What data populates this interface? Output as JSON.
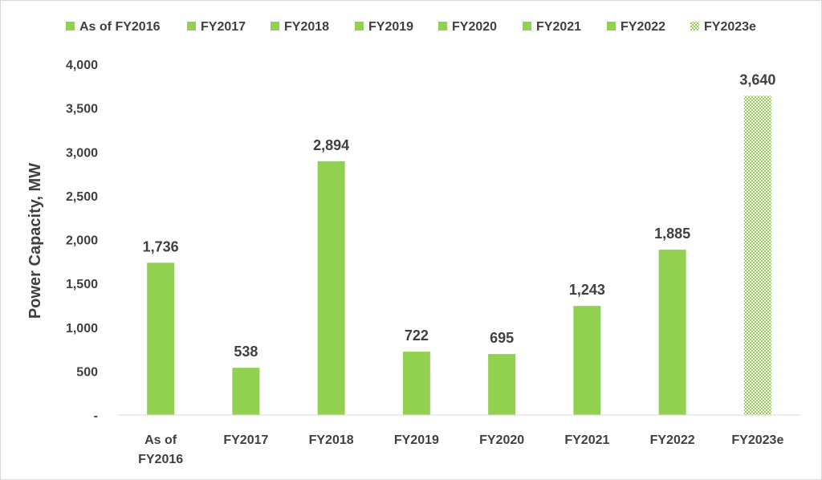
{
  "chart_data": {
    "type": "bar",
    "categories": [
      "As of FY2016",
      "FY2017",
      "FY2018",
      "FY2019",
      "FY2020",
      "FY2021",
      "FY2022",
      "FY2023e"
    ],
    "category_lines": [
      [
        "As of",
        "FY2016"
      ],
      [
        "FY2017"
      ],
      [
        "FY2018"
      ],
      [
        "FY2019"
      ],
      [
        "FY2020"
      ],
      [
        "FY2021"
      ],
      [
        "FY2022"
      ],
      [
        "FY2023e"
      ]
    ],
    "values": [
      1736,
      538,
      2894,
      722,
      695,
      1243,
      1885,
      3640
    ],
    "value_labels": [
      "1,736",
      "538",
      "2,894",
      "722",
      "695",
      "1,243",
      "1,885",
      "3,640"
    ],
    "estimated": [
      false,
      false,
      false,
      false,
      false,
      false,
      false,
      true
    ],
    "legend_entries": [
      "As of FY2016",
      "FY2017",
      "FY2018",
      "FY2019",
      "FY2020",
      "FY2021",
      "FY2022",
      "FY2023e"
    ],
    "legend_position": "top",
    "title": "",
    "xlabel": "",
    "ylabel": "Power Capacity, MW",
    "ylim": [
      0,
      4000
    ],
    "yticks": [
      0,
      500,
      1000,
      1500,
      2000,
      2500,
      3000,
      3500,
      4000
    ],
    "ytick_labels": [
      "-",
      "500",
      "1,000",
      "1,500",
      "2,000",
      "2,500",
      "3,000",
      "3,500",
      "4,000"
    ],
    "grid": false,
    "colors": {
      "bar": "#92d050",
      "text": "#404040",
      "axis": "#d9d9d9"
    }
  }
}
